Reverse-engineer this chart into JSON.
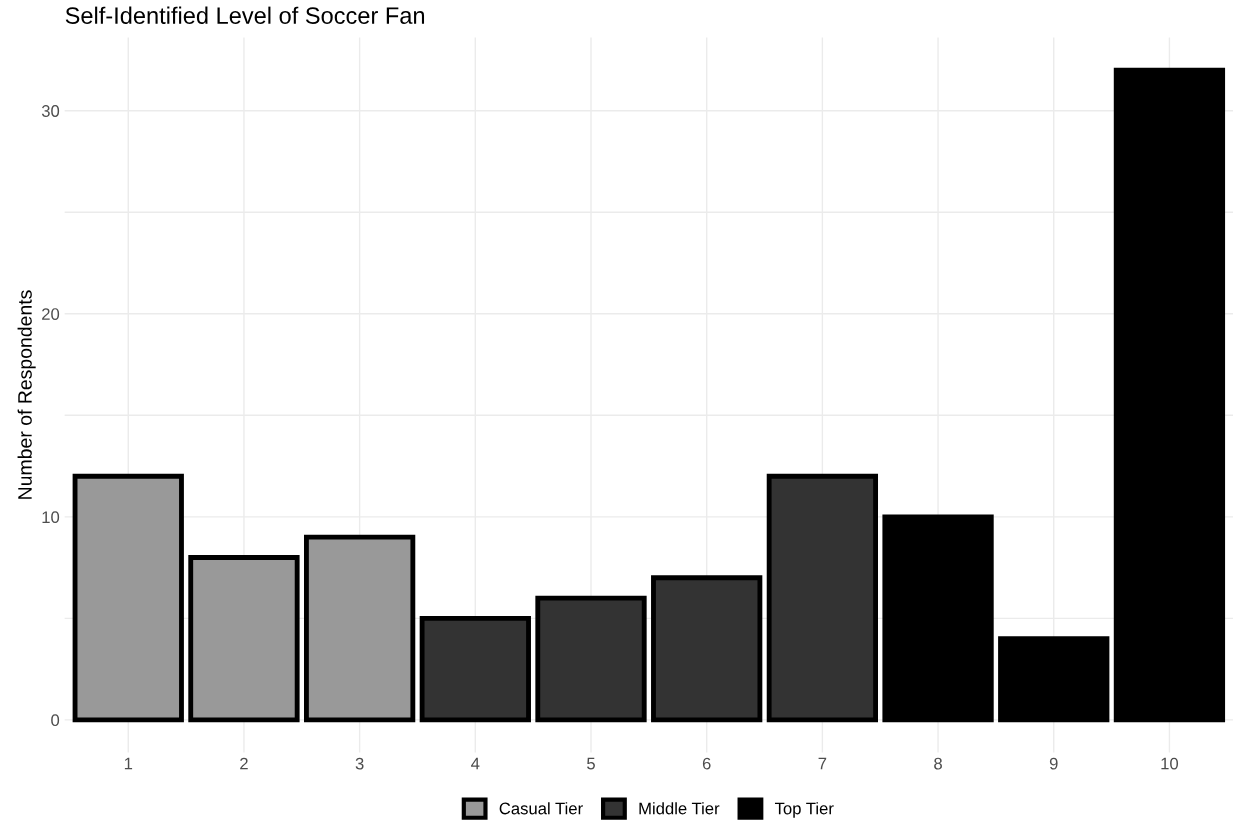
{
  "chart_data": {
    "type": "bar",
    "title": "Self-Identified Level of Soccer Fan",
    "ylabel": "Number of Respondents",
    "categories": [
      "1",
      "2",
      "3",
      "4",
      "5",
      "6",
      "7",
      "8",
      "9",
      "10"
    ],
    "series": [
      {
        "name": "Casual Tier",
        "color": "#999999",
        "values": [
          12,
          8,
          9,
          null,
          null,
          null,
          null,
          null,
          null,
          null
        ]
      },
      {
        "name": "Middle Tier",
        "color": "#333333",
        "values": [
          null,
          null,
          null,
          5,
          6,
          7,
          12,
          null,
          null,
          null
        ]
      },
      {
        "name": "Top Tier",
        "color": "#000000",
        "values": [
          null,
          null,
          null,
          null,
          null,
          null,
          null,
          10,
          4,
          32
        ]
      }
    ],
    "ylim": [
      -1.6,
      33.6
    ],
    "yticks": [
      0,
      {
        "value": 5,
        "label": null
      },
      10,
      {
        "value": 15,
        "label": null
      },
      20,
      {
        "value": 25,
        "label": null
      },
      30
    ],
    "grid": true,
    "legend": "bottom"
  }
}
